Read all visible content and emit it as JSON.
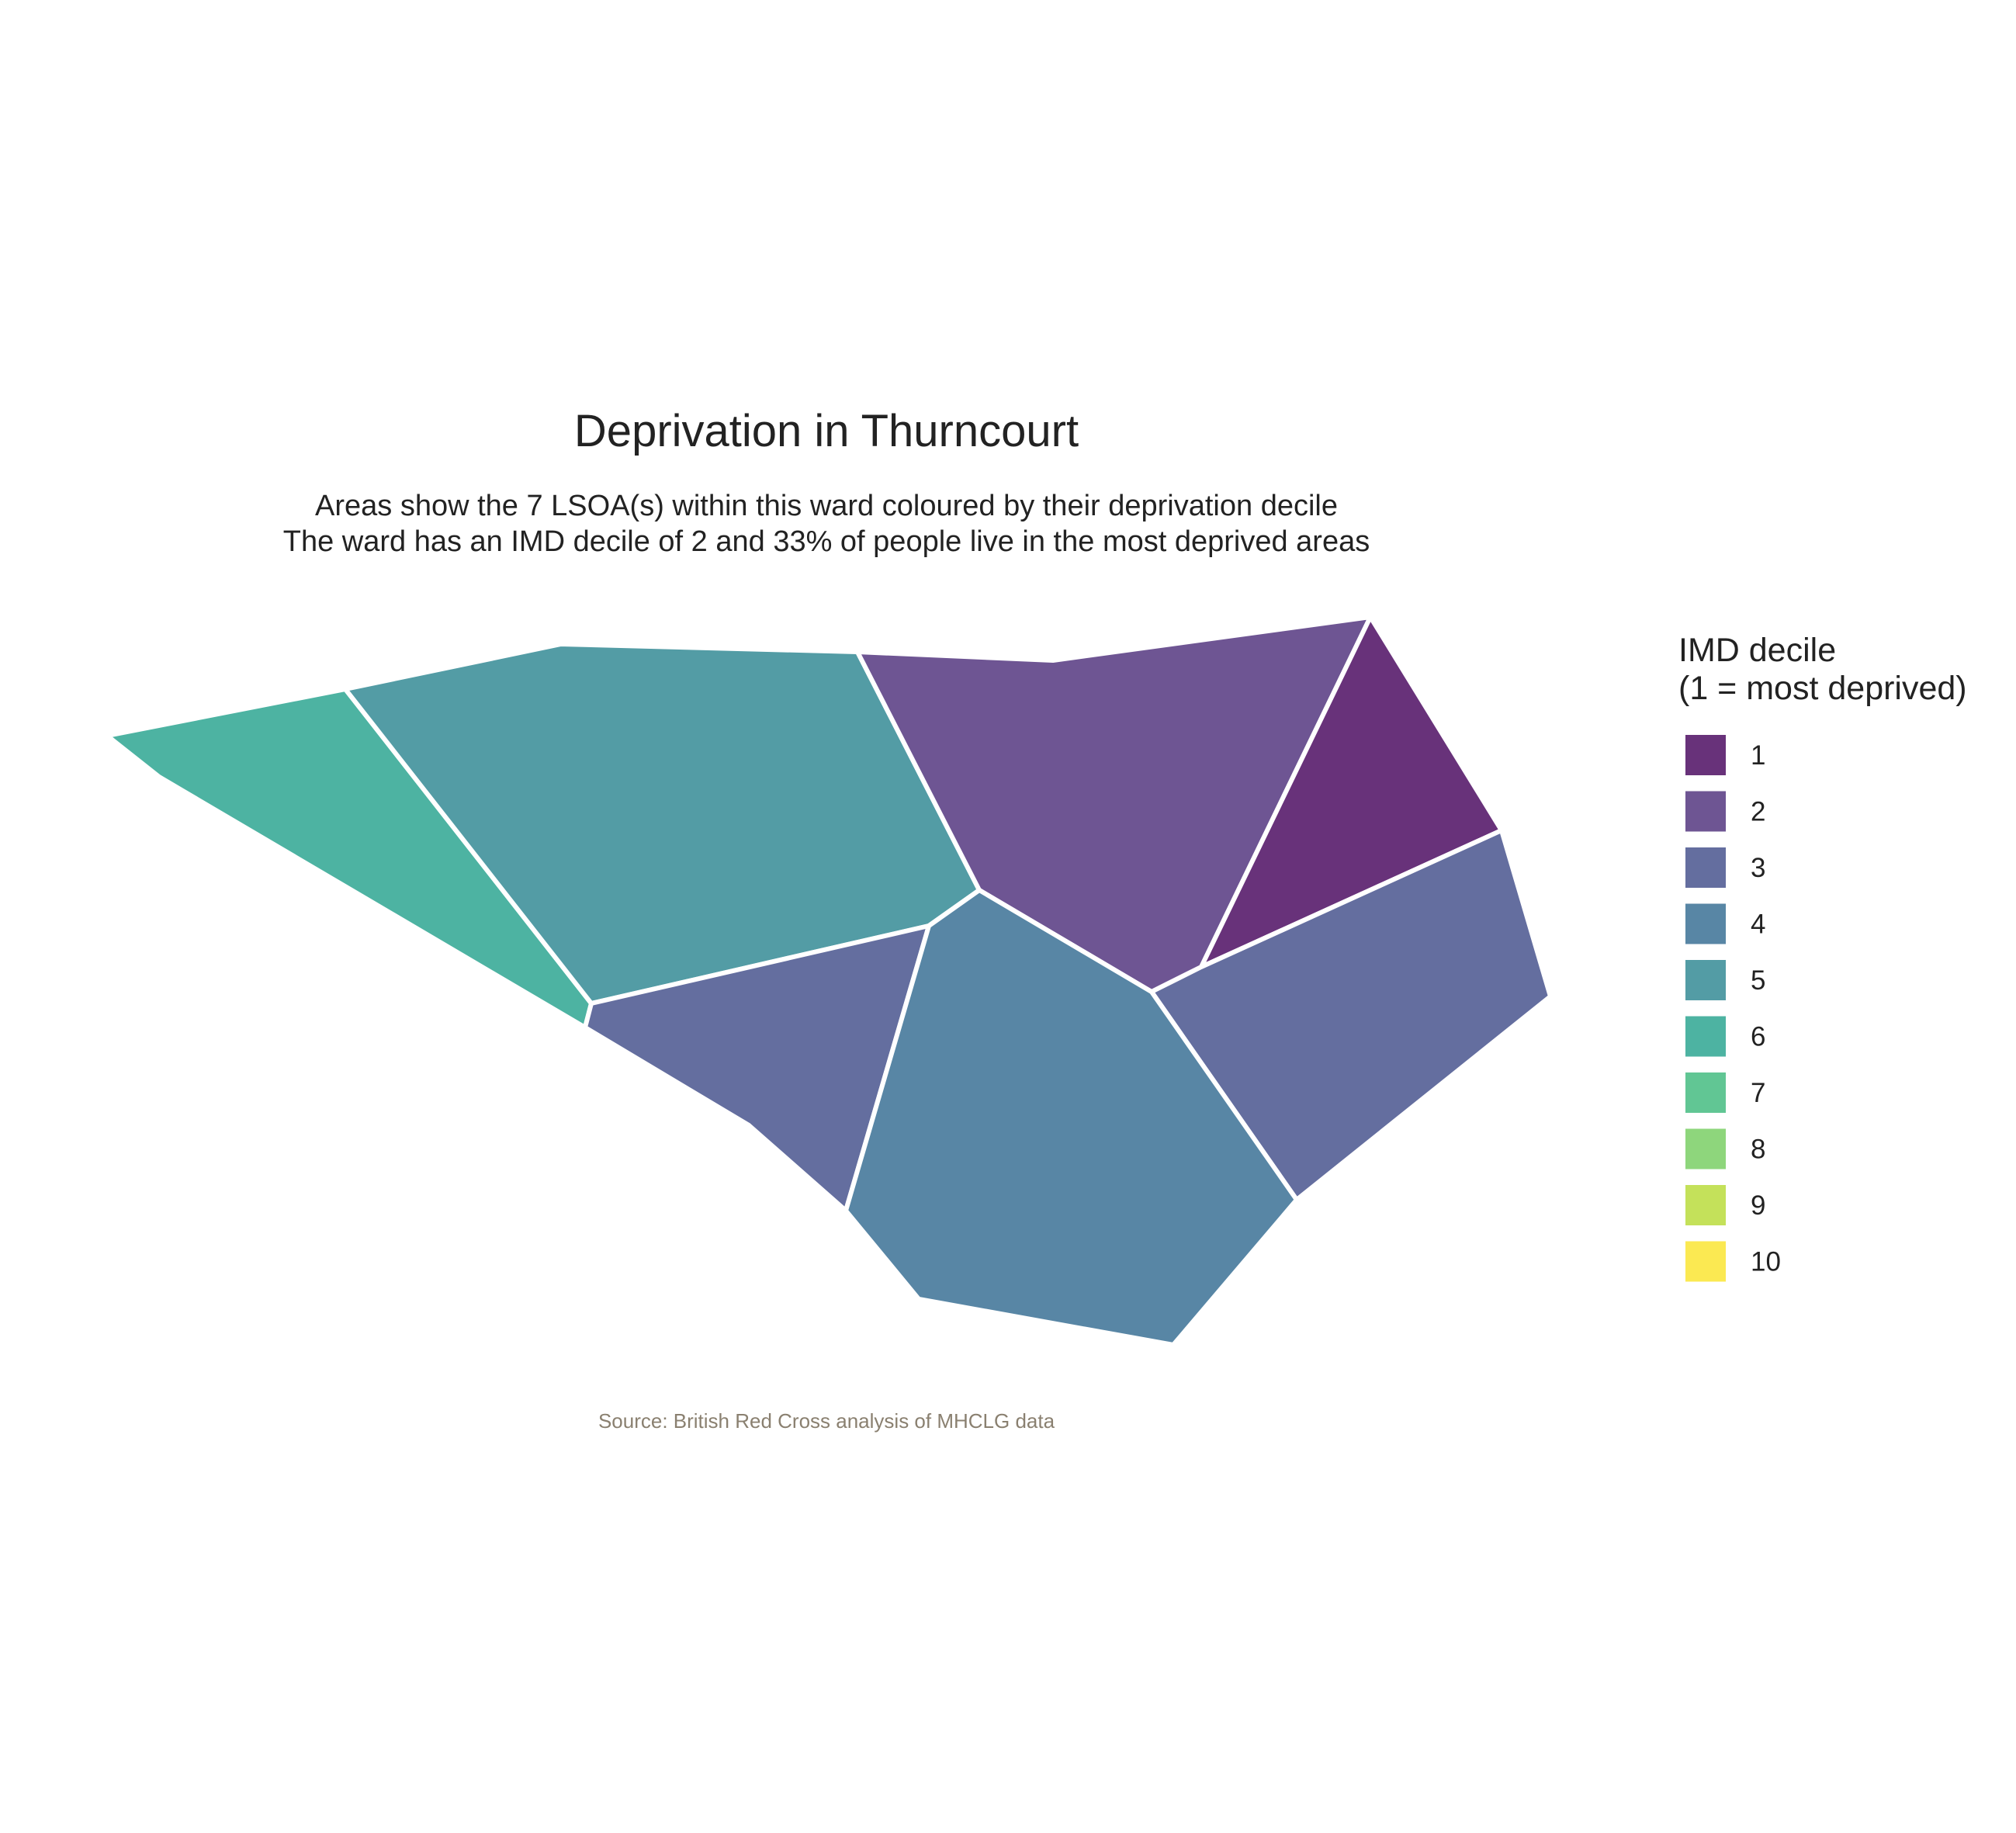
{
  "map": {
    "title": "Deprivation in Thurncourt",
    "subtitle_lines": [
      "Areas show the 7 LSOA(s) within this ward coloured by their deprivation decile",
      "The ward has an IMD decile of 2 and 33% of people live in the most deprived areas"
    ],
    "caption": "Source: British Red Cross analysis of MHCLG data",
    "legend": {
      "title_lines": [
        "IMD decile",
        "(1 = most deprived)"
      ],
      "items": [
        {
          "label": "1",
          "color": "#68327a"
        },
        {
          "label": "2",
          "color": "#6e5593"
        },
        {
          "label": "3",
          "color": "#646e9f"
        },
        {
          "label": "4",
          "color": "#5886a5"
        },
        {
          "label": "5",
          "color": "#539ca5"
        },
        {
          "label": "6",
          "color": "#4db3a2"
        },
        {
          "label": "7",
          "color": "#61c694"
        },
        {
          "label": "8",
          "color": "#8ed67c"
        },
        {
          "label": "9",
          "color": "#c4e15a"
        },
        {
          "label": "10",
          "color": "#fbe952"
        }
      ]
    }
  }
}
